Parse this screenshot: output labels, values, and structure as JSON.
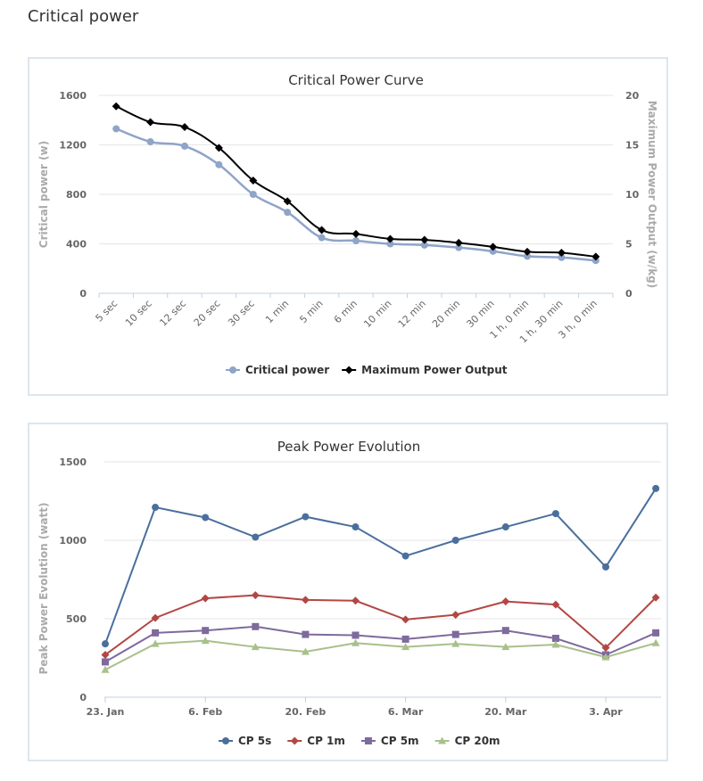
{
  "page": {
    "title": "Critical power"
  },
  "chart_data": [
    {
      "type": "line",
      "title": "Critical Power Curve",
      "categories": [
        "5 sec",
        "10 sec",
        "12 sec",
        "20 sec",
        "30 sec",
        "1 min",
        "5 min",
        "6 min",
        "10 min",
        "12 min",
        "20 min",
        "30 min",
        "1 h, 0 min",
        "1 h, 30 min",
        "3 h, 0 min"
      ],
      "ylabel": "Critical power (w)",
      "ylabel_right": "Maximum Power Output (w/kg)",
      "ylim": [
        0,
        1600
      ],
      "yticks": [
        "0",
        "400",
        "800",
        "1200",
        "1600"
      ],
      "ylim_right": [
        0,
        20
      ],
      "yticks_right": [
        "0",
        "5",
        "10",
        "15",
        "20"
      ],
      "grid": true,
      "legend_position": "bottom",
      "series": [
        {
          "name": "Critical power",
          "color": "#8fa4c9",
          "marker": "circle",
          "axis": "left",
          "values": [
            1330,
            1225,
            1190,
            1040,
            800,
            655,
            450,
            425,
            400,
            390,
            370,
            340,
            300,
            290,
            265
          ]
        },
        {
          "name": "Maximum Power Output",
          "color": "#000000",
          "marker": "diamond",
          "axis": "right",
          "values": [
            18.9,
            17.3,
            16.8,
            14.7,
            11.4,
            9.3,
            6.4,
            6.0,
            5.5,
            5.4,
            5.1,
            4.7,
            4.2,
            4.1,
            3.7
          ]
        }
      ]
    },
    {
      "type": "line",
      "title": "Peak Power Evolution",
      "xlabels": [
        "23. Jan",
        "6. Feb",
        "20. Feb",
        "6. Mar",
        "20. Mar",
        "3. Apr"
      ],
      "ylabel": "Peak Power Evolution (watt)",
      "ylim": [
        0,
        1500
      ],
      "yticks": [
        "0",
        "500",
        "1000",
        "1500"
      ],
      "grid": true,
      "legend_position": "bottom",
      "series": [
        {
          "name": "CP 5s",
          "color": "#4a6f9c",
          "marker": "circle",
          "values": [
            340,
            1210,
            1145,
            1020,
            1150,
            1085,
            900,
            1000,
            1085,
            1170,
            830,
            1330
          ]
        },
        {
          "name": "CP 1m",
          "color": "#b24743",
          "marker": "diamond",
          "values": [
            270,
            505,
            630,
            650,
            620,
            615,
            495,
            525,
            610,
            590,
            315,
            635
          ]
        },
        {
          "name": "CP 5m",
          "color": "#7e6a9c",
          "marker": "square",
          "values": [
            225,
            410,
            425,
            450,
            400,
            395,
            370,
            400,
            425,
            375,
            270,
            410
          ]
        },
        {
          "name": "CP 20m",
          "color": "#a8c08a",
          "marker": "triangle",
          "values": [
            175,
            340,
            360,
            320,
            290,
            345,
            320,
            340,
            320,
            335,
            255,
            345
          ]
        }
      ]
    }
  ]
}
